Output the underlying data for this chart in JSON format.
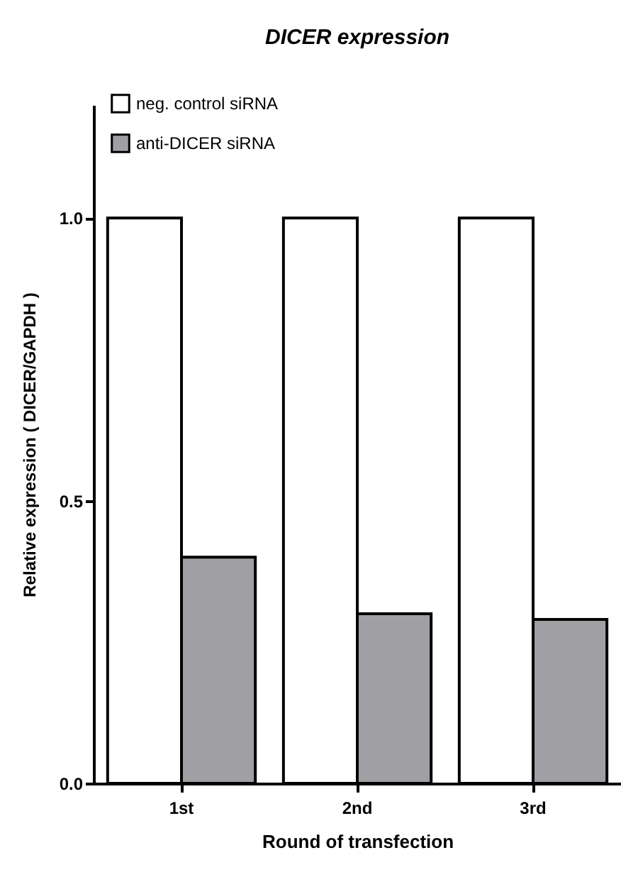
{
  "chart_data": {
    "type": "bar",
    "title": "DICER expression",
    "xlabel": "Round of transfection",
    "ylabel": "Relative expression ( DICER/GAPDH )",
    "categories": [
      "1st",
      "2nd",
      "3rd"
    ],
    "series": [
      {
        "name": "neg. control siRNA",
        "color": "#ffffff",
        "values": [
          1.0,
          1.0,
          1.0
        ]
      },
      {
        "name": "anti-DICER siRNA",
        "color": "#a0a0a4",
        "values": [
          0.4,
          0.3,
          0.29
        ]
      }
    ],
    "ylim": [
      0,
      1.2
    ],
    "yticks": [
      {
        "value": 0,
        "label": "0.0"
      },
      {
        "value": 0.5,
        "label": "0.5"
      },
      {
        "value": 1,
        "label": "1.0"
      }
    ],
    "grid": false,
    "legend": "top left"
  }
}
